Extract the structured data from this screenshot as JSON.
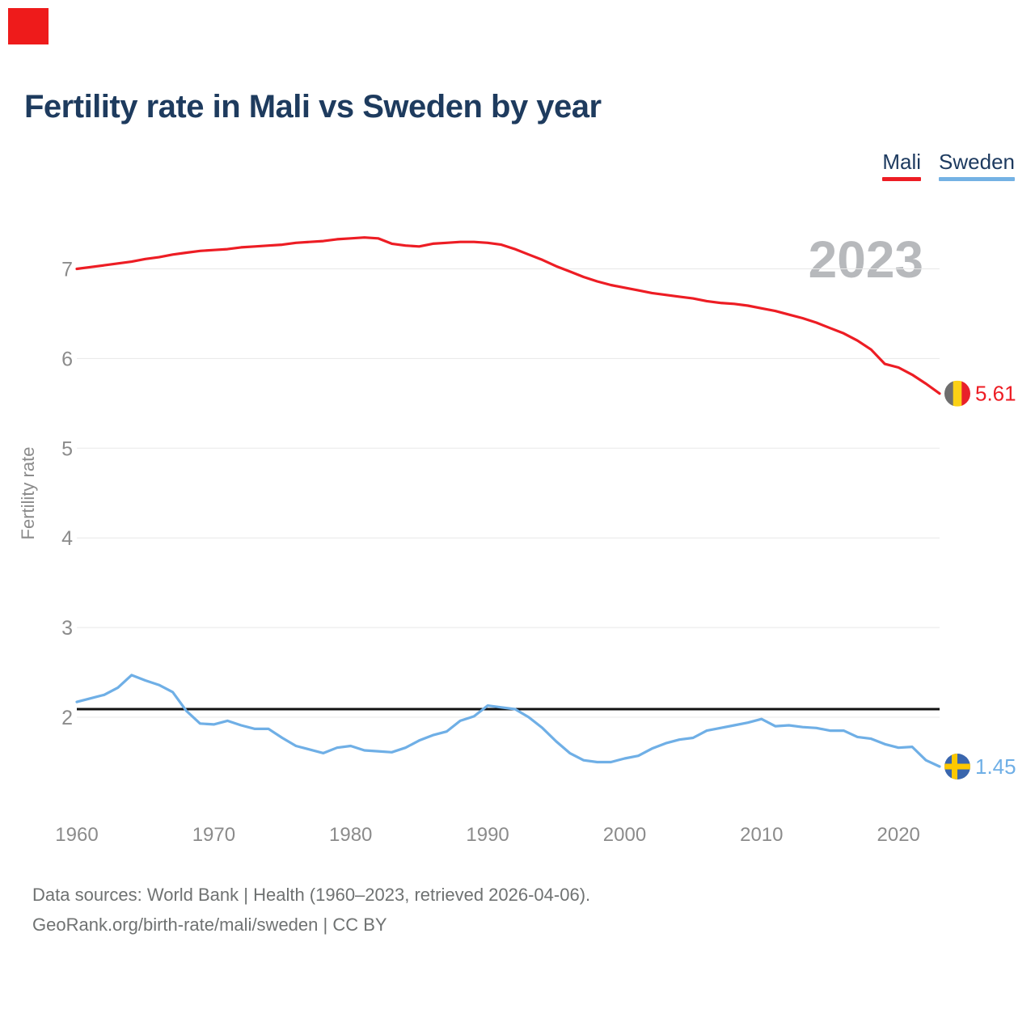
{
  "header": {
    "title": "Fertility rate in Mali vs Sweden by year"
  },
  "legend": {
    "items": [
      {
        "label": "Mali",
        "color": "#ed1d24"
      },
      {
        "label": "Sweden",
        "color": "#74b2e4"
      }
    ]
  },
  "chart_data": {
    "type": "line",
    "title": "Fertility rate in Mali vs Sweden by year",
    "xlabel": "",
    "ylabel": "Fertility rate",
    "watermark": "2023",
    "grid": "horizontal",
    "ylim": [
      1.3,
      7.6
    ],
    "xlim": [
      1960,
      2023
    ],
    "yticks": [
      2,
      3,
      4,
      5,
      6,
      7
    ],
    "xticks": [
      1960,
      1970,
      1980,
      1990,
      2000,
      2010,
      2020
    ],
    "reference_line": {
      "value": 2.09,
      "color": "#111111"
    },
    "x": [
      1960,
      1961,
      1962,
      1963,
      1964,
      1965,
      1966,
      1967,
      1968,
      1969,
      1970,
      1971,
      1972,
      1973,
      1974,
      1975,
      1976,
      1977,
      1978,
      1979,
      1980,
      1981,
      1982,
      1983,
      1984,
      1985,
      1986,
      1987,
      1988,
      1989,
      1990,
      1991,
      1992,
      1993,
      1994,
      1995,
      1996,
      1997,
      1998,
      1999,
      2000,
      2001,
      2002,
      2003,
      2004,
      2005,
      2006,
      2007,
      2008,
      2009,
      2010,
      2011,
      2012,
      2013,
      2014,
      2015,
      2016,
      2017,
      2018,
      2019,
      2020,
      2021,
      2022,
      2023
    ],
    "series": [
      {
        "name": "Mali",
        "color": "#ed1d24",
        "end_label": "5.61",
        "end_value": 5.61,
        "flag": "mali",
        "flag_colors": [
          "#6e6e6e",
          "#fbd116",
          "#e8212a"
        ],
        "values": [
          7.0,
          7.02,
          7.04,
          7.06,
          7.08,
          7.11,
          7.13,
          7.16,
          7.18,
          7.2,
          7.21,
          7.22,
          7.24,
          7.25,
          7.26,
          7.27,
          7.29,
          7.3,
          7.31,
          7.33,
          7.34,
          7.35,
          7.34,
          7.28,
          7.26,
          7.25,
          7.28,
          7.29,
          7.3,
          7.3,
          7.29,
          7.27,
          7.22,
          7.16,
          7.1,
          7.03,
          6.97,
          6.91,
          6.86,
          6.82,
          6.79,
          6.76,
          6.73,
          6.71,
          6.69,
          6.67,
          6.64,
          6.62,
          6.61,
          6.59,
          6.56,
          6.53,
          6.49,
          6.45,
          6.4,
          6.34,
          6.28,
          6.2,
          6.1,
          5.94,
          5.9,
          5.82,
          5.72,
          5.61
        ]
      },
      {
        "name": "Sweden",
        "color": "#6fafe6",
        "end_label": "1.45",
        "end_value": 1.45,
        "flag": "sweden",
        "flag_colors": [
          "#3a66ad",
          "#fdc800"
        ],
        "values": [
          2.17,
          2.21,
          2.25,
          2.33,
          2.47,
          2.41,
          2.36,
          2.28,
          2.07,
          1.93,
          1.92,
          1.96,
          1.91,
          1.87,
          1.87,
          1.77,
          1.68,
          1.64,
          1.6,
          1.66,
          1.68,
          1.63,
          1.62,
          1.61,
          1.66,
          1.74,
          1.8,
          1.84,
          1.96,
          2.01,
          2.13,
          2.11,
          2.09,
          2.0,
          1.88,
          1.73,
          1.6,
          1.52,
          1.5,
          1.5,
          1.54,
          1.57,
          1.65,
          1.71,
          1.75,
          1.77,
          1.85,
          1.88,
          1.91,
          1.94,
          1.98,
          1.9,
          1.91,
          1.89,
          1.88,
          1.85,
          1.85,
          1.78,
          1.76,
          1.7,
          1.66,
          1.67,
          1.52,
          1.45
        ]
      }
    ]
  },
  "footer": {
    "line1": "Data sources: World Bank | Health (1960–2023, retrieved 2026-04-06).",
    "line2": "GeoRank.org/birth-rate/mali/sweden | CC BY"
  }
}
